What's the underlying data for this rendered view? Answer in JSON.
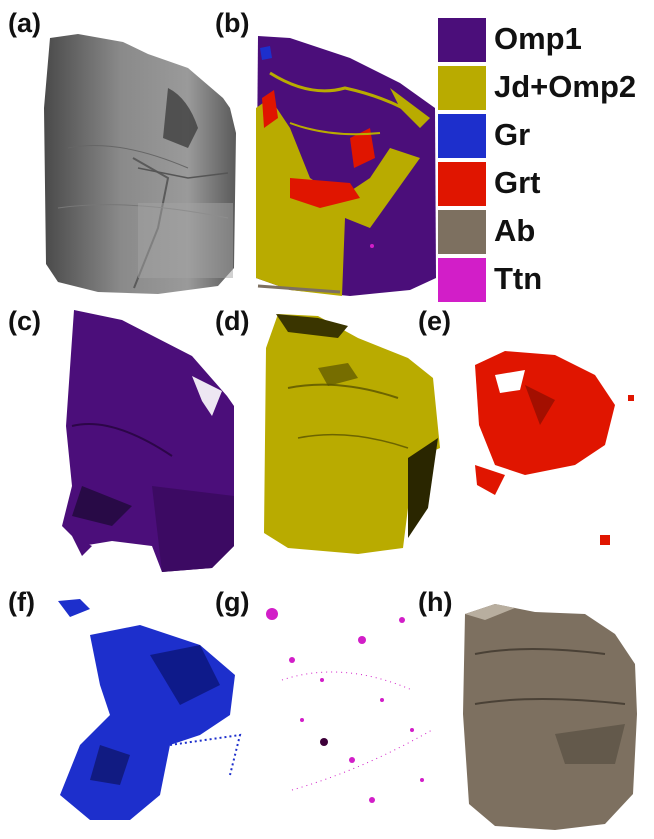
{
  "panels": {
    "a": "(a)",
    "b": "(b)",
    "c": "(c)",
    "d": "(d)",
    "e": "(e)",
    "f": "(f)",
    "g": "(g)",
    "h": "(h)"
  },
  "legend": [
    {
      "label": "Omp1",
      "color": "#4b0e7a"
    },
    {
      "label": "Jd+Omp2",
      "color": "#b9ab00"
    },
    {
      "label": "Gr",
      "color": "#1d2fcc"
    },
    {
      "label": "Grt",
      "color": "#e01500"
    },
    {
      "label": "Ab",
      "color": "#7d7060"
    },
    {
      "label": "Ttn",
      "color": "#d21ec8"
    }
  ]
}
